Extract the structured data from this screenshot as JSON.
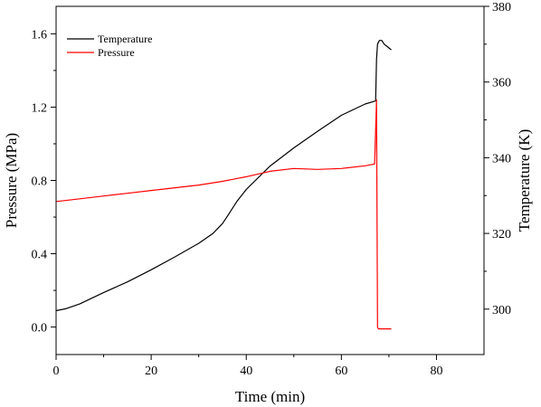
{
  "chart_data": {
    "type": "line",
    "xlabel": "Time (min)",
    "ylabel_left": "Pressure (MPa)",
    "ylabel_right": "Temperature (K)",
    "xlim": [
      0,
      90
    ],
    "ylim_left": [
      -0.15,
      1.75
    ],
    "ylim_right": [
      288.0,
      380
    ],
    "xticks": [
      "0",
      "20",
      "40",
      "60",
      "80"
    ],
    "yticks_left": [
      "0.0",
      "0.4",
      "0.8",
      "1.2",
      "1.6"
    ],
    "yticks_right": [
      "300",
      "320",
      "340",
      "360",
      "380"
    ],
    "grid": false,
    "legend_position": "top-left",
    "series": [
      {
        "name": "Temperature",
        "axis": "right",
        "color": "#000000",
        "x": [
          0,
          2,
          5,
          10,
          15,
          20,
          25,
          30,
          33,
          35,
          36,
          38,
          40,
          45,
          50,
          55,
          60,
          65,
          67.2,
          67.4,
          67.6,
          68,
          68.5,
          69,
          69.5,
          70,
          70.5
        ],
        "y": [
          299.6,
          300.1,
          301.4,
          304.4,
          307.2,
          310.4,
          313.8,
          317.4,
          320.0,
          322.6,
          324.5,
          328.4,
          331.6,
          337.8,
          342.6,
          347.0,
          351.2,
          354.2,
          355.0,
          366.0,
          370.0,
          371.0,
          371.0,
          370.0,
          369.5,
          369.0,
          368.5
        ]
      },
      {
        "name": "Pressure",
        "axis": "left",
        "color": "#ff0000",
        "x": [
          0,
          5,
          10,
          15,
          20,
          25,
          30,
          35,
          40,
          45,
          50,
          55,
          60,
          65,
          67.0,
          67.4,
          67.6,
          67.8,
          70.5
        ],
        "y": [
          0.685,
          0.7,
          0.715,
          0.73,
          0.745,
          0.76,
          0.775,
          0.795,
          0.82,
          0.85,
          0.865,
          0.86,
          0.865,
          0.88,
          0.89,
          1.24,
          0.0,
          -0.01,
          -0.01
        ]
      }
    ]
  }
}
